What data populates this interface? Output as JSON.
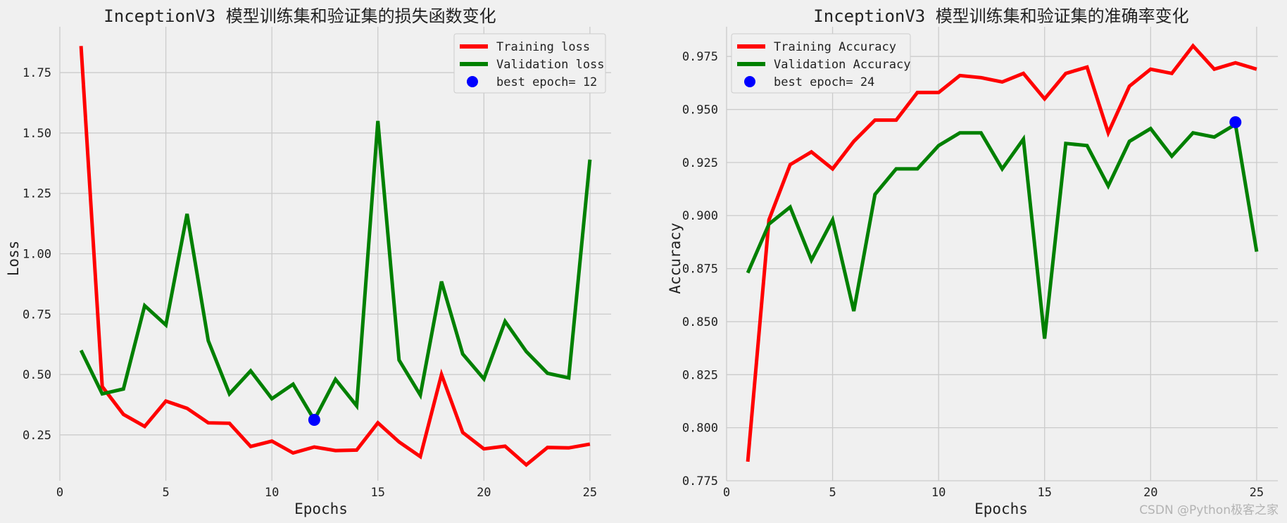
{
  "watermark": "CSDN @Python极客之家",
  "colors": {
    "background": "#f0f0f0",
    "grid": "#cbcbcb",
    "training": "#ff0000",
    "validation": "#008000",
    "best": "#0000ff"
  },
  "chart_data": [
    {
      "type": "line",
      "title": "InceptionV3 模型训练集和验证集的损失函数变化",
      "xlabel": "Epochs",
      "ylabel": "Loss",
      "xlim": [
        0,
        26
      ],
      "ylim": [
        0.06,
        1.94
      ],
      "xticks": [
        0,
        5,
        10,
        15,
        20,
        25
      ],
      "yticks": [
        0.25,
        0.5,
        0.75,
        1.0,
        1.25,
        1.5,
        1.75
      ],
      "ytick_labels": [
        "0.25",
        "0.50",
        "0.75",
        "1.00",
        "1.25",
        "1.50",
        "1.75"
      ],
      "grid": true,
      "legend_position": "top-right",
      "x": [
        1,
        2,
        3,
        4,
        5,
        6,
        7,
        8,
        9,
        10,
        11,
        12,
        13,
        14,
        15,
        16,
        17,
        18,
        19,
        20,
        21,
        22,
        23,
        24,
        25
      ],
      "series": [
        {
          "name": "Training loss",
          "color": "#ff0000",
          "values": [
            1.86,
            0.45,
            0.335,
            0.285,
            0.39,
            0.36,
            0.3,
            0.298,
            0.202,
            0.224,
            0.175,
            0.2,
            0.185,
            0.187,
            0.3,
            0.221,
            0.16,
            0.5,
            0.26,
            0.192,
            0.203,
            0.126,
            0.198,
            0.196,
            0.212
          ]
        },
        {
          "name": "Validation loss",
          "color": "#008000",
          "values": [
            0.6,
            0.42,
            0.44,
            0.785,
            0.705,
            1.165,
            0.64,
            0.42,
            0.515,
            0.4,
            0.46,
            0.312,
            0.48,
            0.37,
            1.55,
            0.56,
            0.415,
            0.885,
            0.585,
            0.482,
            0.72,
            0.595,
            0.505,
            0.486,
            1.39
          ]
        }
      ],
      "best_point": {
        "label": "best epoch= 12",
        "x": 12,
        "y": 0.312,
        "color": "#0000ff"
      }
    },
    {
      "type": "line",
      "title": "InceptionV3 模型训练集和验证集的准确率变化",
      "xlabel": "Epochs",
      "ylabel": "Accuracy",
      "xlim": [
        0,
        26
      ],
      "ylim": [
        0.775,
        0.989
      ],
      "xticks": [
        0,
        5,
        10,
        15,
        20,
        25
      ],
      "yticks": [
        0.775,
        0.8,
        0.825,
        0.85,
        0.875,
        0.9,
        0.925,
        0.95,
        0.975
      ],
      "ytick_labels": [
        "0.775",
        "0.800",
        "0.825",
        "0.850",
        "0.875",
        "0.900",
        "0.925",
        "0.950",
        "0.975"
      ],
      "grid": true,
      "legend_position": "top-left",
      "x": [
        1,
        2,
        3,
        4,
        5,
        6,
        7,
        8,
        9,
        10,
        11,
        12,
        13,
        14,
        15,
        16,
        17,
        18,
        19,
        20,
        21,
        22,
        23,
        24,
        25
      ],
      "series": [
        {
          "name": "Training Accuracy",
          "color": "#ff0000",
          "values": [
            0.784,
            0.898,
            0.924,
            0.93,
            0.922,
            0.935,
            0.945,
            0.945,
            0.958,
            0.958,
            0.966,
            0.965,
            0.963,
            0.967,
            0.955,
            0.967,
            0.97,
            0.939,
            0.961,
            0.969,
            0.967,
            0.98,
            0.969,
            0.972,
            0.969
          ]
        },
        {
          "name": "Validation Accuracy",
          "color": "#008000",
          "values": [
            0.873,
            0.896,
            0.904,
            0.879,
            0.898,
            0.855,
            0.91,
            0.922,
            0.922,
            0.933,
            0.939,
            0.939,
            0.922,
            0.936,
            0.842,
            0.934,
            0.933,
            0.914,
            0.935,
            0.941,
            0.928,
            0.939,
            0.937,
            0.943,
            0.883
          ]
        }
      ],
      "best_point": {
        "label": "best epoch= 24",
        "x": 24,
        "y": 0.944,
        "color": "#0000ff"
      }
    }
  ]
}
